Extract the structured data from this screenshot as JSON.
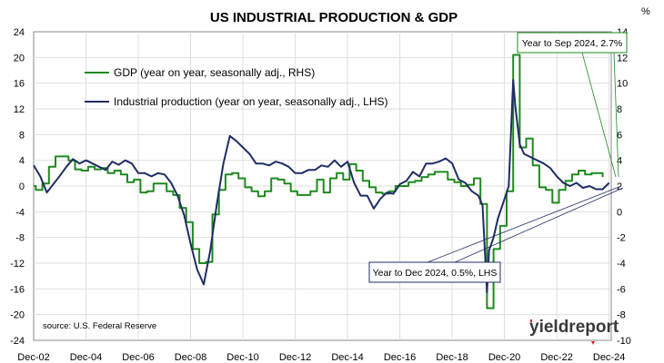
{
  "chart_data": {
    "type": "line",
    "title": "US INDUSTRIAL PRODUCTION & GDP",
    "xlabel": "",
    "ylabel_left": "",
    "ylabel_right": "%",
    "x_tick_labels": [
      "Dec-02",
      "Dec-04",
      "Dec-06",
      "Dec-08",
      "Dec-10",
      "Dec-12",
      "Dec-14",
      "Dec-16",
      "Dec-18",
      "Dec-20",
      "Dec-22",
      "Dec-24"
    ],
    "x_range": [
      2002.917,
      2025.0
    ],
    "ylim_left": [
      -24,
      24
    ],
    "yticks_left": [
      -24,
      -20,
      -16,
      -12,
      -8,
      -4,
      0,
      4,
      8,
      12,
      16,
      20,
      24
    ],
    "ylim_right": [
      -10,
      14
    ],
    "yticks_right": [
      -10,
      -8,
      -6,
      -4,
      -2,
      0,
      2,
      4,
      6,
      8,
      10,
      12,
      14
    ],
    "grid": true,
    "legend_position": "top-left",
    "series": [
      {
        "name": "GDP (year on year, seasonally adj., RHS)",
        "axis": "right",
        "color": "#1e8a1e",
        "x": [
          2002.92,
          2003.0,
          2003.25,
          2003.5,
          2003.75,
          2004.0,
          2004.25,
          2004.5,
          2004.75,
          2005.0,
          2005.25,
          2005.5,
          2005.75,
          2006.0,
          2006.25,
          2006.5,
          2006.75,
          2007.0,
          2007.25,
          2007.5,
          2007.75,
          2008.0,
          2008.25,
          2008.5,
          2008.75,
          2009.0,
          2009.25,
          2009.5,
          2009.75,
          2010.0,
          2010.25,
          2010.5,
          2010.75,
          2011.0,
          2011.25,
          2011.5,
          2011.75,
          2012.0,
          2012.25,
          2012.5,
          2012.75,
          2013.0,
          2013.25,
          2013.5,
          2013.75,
          2014.0,
          2014.25,
          2014.5,
          2014.75,
          2015.0,
          2015.25,
          2015.5,
          2015.75,
          2016.0,
          2016.25,
          2016.5,
          2016.75,
          2017.0,
          2017.25,
          2017.5,
          2017.75,
          2018.0,
          2018.25,
          2018.5,
          2018.75,
          2019.0,
          2019.25,
          2019.5,
          2019.75,
          2020.0,
          2020.25,
          2020.5,
          2020.75,
          2021.0,
          2021.25,
          2021.5,
          2021.75,
          2022.0,
          2022.25,
          2022.5,
          2022.75,
          2023.0,
          2023.25,
          2023.5,
          2023.75,
          2024.0,
          2024.25,
          2024.5,
          2024.67
        ],
        "y": [
          2.0,
          1.7,
          2.2,
          3.5,
          4.3,
          4.3,
          4.0,
          3.3,
          3.2,
          3.5,
          3.3,
          3.4,
          3.0,
          3.2,
          2.9,
          2.3,
          2.5,
          1.5,
          1.6,
          2.2,
          2.2,
          1.6,
          1.3,
          0.3,
          -0.8,
          -2.9,
          -4.0,
          -3.9,
          -0.2,
          1.7,
          2.9,
          3.0,
          2.6,
          1.9,
          1.6,
          1.2,
          1.6,
          2.6,
          2.5,
          2.2,
          1.6,
          1.3,
          1.3,
          1.6,
          2.5,
          1.5,
          2.6,
          3.0,
          2.5,
          3.7,
          3.2,
          2.4,
          1.9,
          1.5,
          1.4,
          1.6,
          2.0,
          2.0,
          2.3,
          2.4,
          2.7,
          2.9,
          3.1,
          3.1,
          2.5,
          2.3,
          2.0,
          2.1,
          2.6,
          0.6,
          -7.5,
          -2.9,
          -1.1,
          1.6,
          12.2,
          5.0,
          5.7,
          3.6,
          1.9,
          1.7,
          0.7,
          1.7,
          2.4,
          2.9,
          3.2,
          2.9,
          3.0,
          3.0,
          2.7
        ]
      },
      {
        "name": "Industrial production (year on year, seasonally adj., LHS)",
        "axis": "left",
        "color": "#1f2d63",
        "x": [
          2002.92,
          2003.17,
          2003.42,
          2003.67,
          2003.92,
          2004.17,
          2004.42,
          2004.67,
          2004.92,
          2005.17,
          2005.42,
          2005.67,
          2005.92,
          2006.17,
          2006.42,
          2006.67,
          2006.92,
          2007.17,
          2007.42,
          2007.67,
          2007.92,
          2008.17,
          2008.42,
          2008.67,
          2008.92,
          2009.17,
          2009.42,
          2009.67,
          2009.92,
          2010.17,
          2010.42,
          2010.67,
          2010.92,
          2011.17,
          2011.42,
          2011.67,
          2011.92,
          2012.17,
          2012.42,
          2012.67,
          2012.92,
          2013.17,
          2013.42,
          2013.67,
          2013.92,
          2014.17,
          2014.42,
          2014.67,
          2014.92,
          2015.17,
          2015.42,
          2015.67,
          2015.92,
          2016.17,
          2016.42,
          2016.67,
          2016.92,
          2017.17,
          2017.42,
          2017.67,
          2017.92,
          2018.17,
          2018.42,
          2018.67,
          2018.92,
          2019.17,
          2019.42,
          2019.67,
          2019.92,
          2020.08,
          2020.25,
          2020.33,
          2020.5,
          2020.67,
          2020.92,
          2021.08,
          2021.25,
          2021.33,
          2021.5,
          2021.67,
          2021.92,
          2022.17,
          2022.42,
          2022.67,
          2022.92,
          2023.17,
          2023.42,
          2023.67,
          2023.92,
          2024.17,
          2024.42,
          2024.67,
          2024.92
        ],
        "y": [
          3.2,
          1.5,
          -1.0,
          0.3,
          1.6,
          3.0,
          4.2,
          3.5,
          4.0,
          3.5,
          3.0,
          2.5,
          3.8,
          3.3,
          4.0,
          3.5,
          2.0,
          2.0,
          1.5,
          2.0,
          1.8,
          0.5,
          -1.5,
          -4.5,
          -9.0,
          -13.0,
          -15.3,
          -10.0,
          -2.8,
          3.5,
          7.8,
          7.0,
          6.0,
          5.0,
          3.5,
          3.5,
          3.2,
          3.8,
          3.5,
          3.0,
          2.0,
          2.0,
          2.5,
          2.5,
          3.2,
          3.0,
          4.0,
          3.0,
          3.8,
          0.5,
          -1.5,
          -1.5,
          -3.5,
          -2.0,
          -1.0,
          -1.2,
          0.3,
          0.8,
          2.2,
          1.5,
          3.5,
          3.5,
          3.8,
          4.3,
          3.5,
          1.0,
          0.5,
          -0.8,
          -1.5,
          -3.0,
          -16.5,
          -10.0,
          -8.0,
          -5.0,
          -2.0,
          0.0,
          16.5,
          12.5,
          6.5,
          5.0,
          4.5,
          4.0,
          3.5,
          2.8,
          1.5,
          0.5,
          0.0,
          0.5,
          -0.3,
          0.0,
          -0.5,
          -0.5,
          0.5
        ]
      }
    ],
    "annotations": [
      "Year to Sep 2024, 2.7%",
      "Year to Dec 2024, 0.5%, LHS"
    ],
    "source": "source: U.S. Federal Reserve",
    "logo": "yieldreport"
  }
}
